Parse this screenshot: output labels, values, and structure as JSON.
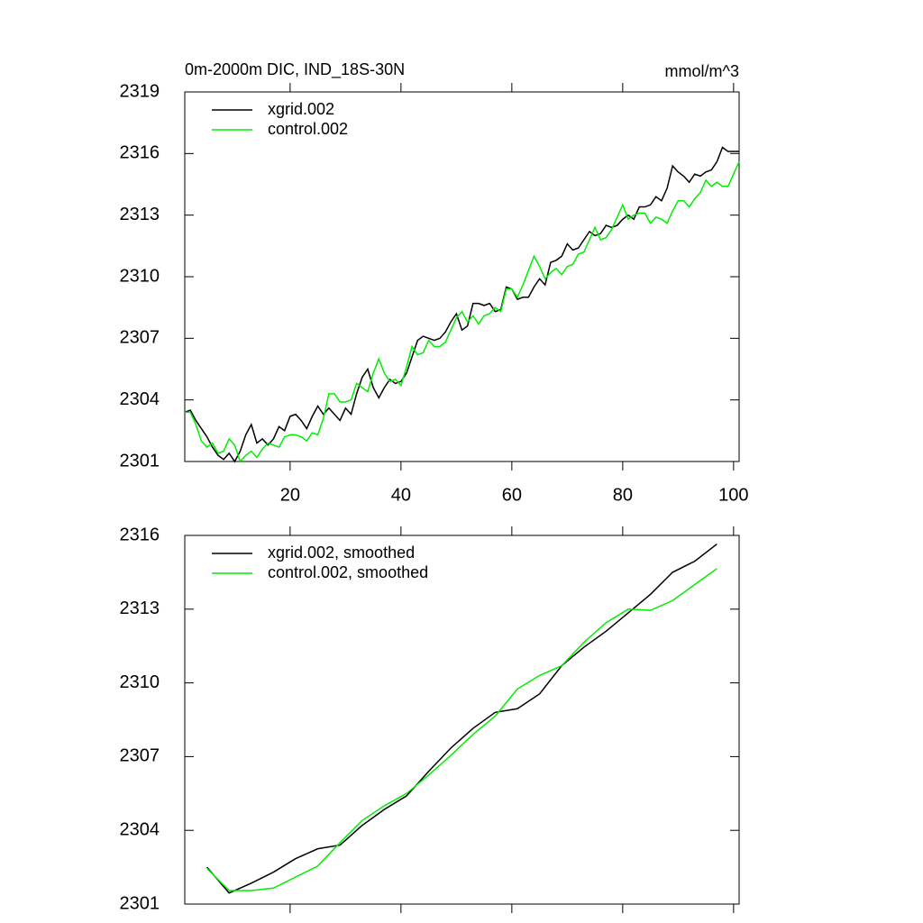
{
  "chart_data": [
    {
      "type": "line",
      "title": "0m-2000m DIC, IND_18S-30N",
      "units": "mmol/m^3",
      "x": [
        1,
        2,
        3,
        4,
        5,
        6,
        7,
        8,
        9,
        10,
        11,
        12,
        13,
        14,
        15,
        16,
        17,
        18,
        19,
        20,
        21,
        22,
        23,
        24,
        25,
        26,
        27,
        28,
        29,
        30,
        31,
        32,
        33,
        34,
        35,
        36,
        37,
        38,
        39,
        40,
        41,
        42,
        43,
        44,
        45,
        46,
        47,
        48,
        49,
        50,
        51,
        52,
        53,
        54,
        55,
        56,
        57,
        58,
        59,
        60,
        61,
        62,
        63,
        64,
        65,
        66,
        67,
        68,
        69,
        70,
        71,
        72,
        73,
        74,
        75,
        76,
        77,
        78,
        79,
        80,
        81,
        82,
        83,
        84,
        85,
        86,
        87,
        88,
        89,
        90,
        91,
        92,
        93,
        94,
        95,
        96,
        97,
        98,
        99,
        100,
        101
      ],
      "series": [
        {
          "name": "xgrid.002",
          "color": "#000000",
          "values": [
            2303.4,
            2303.5,
            2303.0,
            2302.6,
            2302.2,
            2301.7,
            2301.3,
            2301.1,
            2301.4,
            2301.0,
            2301.5,
            2302.3,
            2302.8,
            2301.9,
            2302.1,
            2301.8,
            2302.1,
            2302.7,
            2302.5,
            2303.2,
            2303.3,
            2303.0,
            2302.6,
            2303.2,
            2303.7,
            2303.3,
            2303.6,
            2303.3,
            2303.0,
            2303.6,
            2303.3,
            2304.3,
            2305.1,
            2305.5,
            2304.6,
            2304.1,
            2304.6,
            2305.0,
            2304.8,
            2304.9,
            2305.3,
            2306.1,
            2306.9,
            2307.1,
            2307.0,
            2306.9,
            2307.0,
            2307.3,
            2307.8,
            2308.2,
            2307.4,
            2307.6,
            2308.7,
            2308.7,
            2308.6,
            2308.7,
            2308.3,
            2308.4,
            2309.5,
            2309.4,
            2308.9,
            2309.0,
            2309.0,
            2309.5,
            2309.9,
            2309.6,
            2310.7,
            2310.8,
            2311.0,
            2311.6,
            2311.3,
            2311.4,
            2311.8,
            2312.2,
            2312.0,
            2312.1,
            2312.5,
            2312.4,
            2312.5,
            2312.8,
            2313.0,
            2312.8,
            2313.4,
            2313.4,
            2313.5,
            2313.9,
            2313.7,
            2314.3,
            2315.4,
            2315.1,
            2314.9,
            2314.6,
            2315.0,
            2314.9,
            2315.1,
            2315.2,
            2315.6,
            2316.3,
            2316.1,
            2316.1,
            2316.1
          ]
        },
        {
          "name": "control.002",
          "color": "#00ee00",
          "values": [
            2303.4,
            2303.4,
            2302.8,
            2302.0,
            2301.7,
            2301.9,
            2301.4,
            2301.5,
            2302.1,
            2301.8,
            2301.0,
            2301.3,
            2301.5,
            2301.2,
            2301.6,
            2301.9,
            2301.8,
            2301.7,
            2302.2,
            2302.3,
            2302.3,
            2302.2,
            2302.0,
            2302.4,
            2302.3,
            2303.1,
            2304.3,
            2304.3,
            2303.9,
            2303.9,
            2304.0,
            2304.8,
            2304.6,
            2304.4,
            2305.3,
            2306.0,
            2305.3,
            2304.9,
            2305.0,
            2304.7,
            2305.6,
            2306.6,
            2306.2,
            2306.3,
            2306.9,
            2306.6,
            2306.6,
            2306.8,
            2307.4,
            2308.0,
            2308.3,
            2307.8,
            2308.1,
            2307.7,
            2308.1,
            2308.2,
            2308.5,
            2308.3,
            2309.4,
            2309.4,
            2309.0,
            2309.6,
            2310.3,
            2311.0,
            2310.5,
            2309.9,
            2310.2,
            2310.4,
            2310.1,
            2310.5,
            2310.6,
            2311.1,
            2311.2,
            2311.8,
            2312.4,
            2311.8,
            2311.9,
            2312.3,
            2312.9,
            2313.5,
            2312.8,
            2313.0,
            2313.1,
            2313.1,
            2312.6,
            2312.9,
            2312.8,
            2312.6,
            2313.2,
            2313.7,
            2313.7,
            2313.4,
            2313.8,
            2314.1,
            2314.7,
            2314.4,
            2314.6,
            2314.4,
            2314.4,
            2315.0,
            2315.6
          ]
        }
      ],
      "xlim": [
        1,
        101
      ],
      "xticks": [
        20,
        40,
        60,
        80,
        100
      ],
      "ylim": [
        2301,
        2319
      ],
      "yticks": [
        2301,
        2304,
        2307,
        2310,
        2313,
        2316,
        2319
      ],
      "legend": "upper-left"
    },
    {
      "type": "line",
      "x": [
        5,
        9,
        13,
        17,
        21,
        25,
        29,
        33,
        37,
        41,
        45,
        49,
        53,
        57,
        61,
        65,
        69,
        73,
        77,
        81,
        85,
        89,
        93,
        97
      ],
      "series": [
        {
          "name": "xgrid.002, smoothed",
          "color": "#000000",
          "values": [
            2302.5,
            2301.45,
            2301.85,
            2302.3,
            2302.85,
            2303.25,
            2303.4,
            2304.2,
            2304.85,
            2305.4,
            2306.4,
            2307.35,
            2308.15,
            2308.8,
            2308.95,
            2309.55,
            2310.7,
            2311.45,
            2312.1,
            2312.85,
            2313.6,
            2314.5,
            2314.95,
            2315.65
          ]
        },
        {
          "name": "control.002, smoothed",
          "color": "#00ee00",
          "values": [
            2302.45,
            2301.55,
            2301.55,
            2301.65,
            2302.1,
            2302.55,
            2303.5,
            2304.4,
            2305.0,
            2305.5,
            2306.25,
            2307.05,
            2307.9,
            2308.65,
            2309.75,
            2310.3,
            2310.7,
            2311.65,
            2312.45,
            2313.0,
            2312.95,
            2313.35,
            2314.0,
            2314.65
          ]
        }
      ],
      "xlim": [
        1,
        101
      ],
      "xticks": [
        20,
        40,
        60,
        80,
        100
      ],
      "ylim": [
        2301,
        2316
      ],
      "yticks": [
        2301,
        2304,
        2307,
        2310,
        2313,
        2316
      ],
      "legend": "upper-left"
    }
  ]
}
